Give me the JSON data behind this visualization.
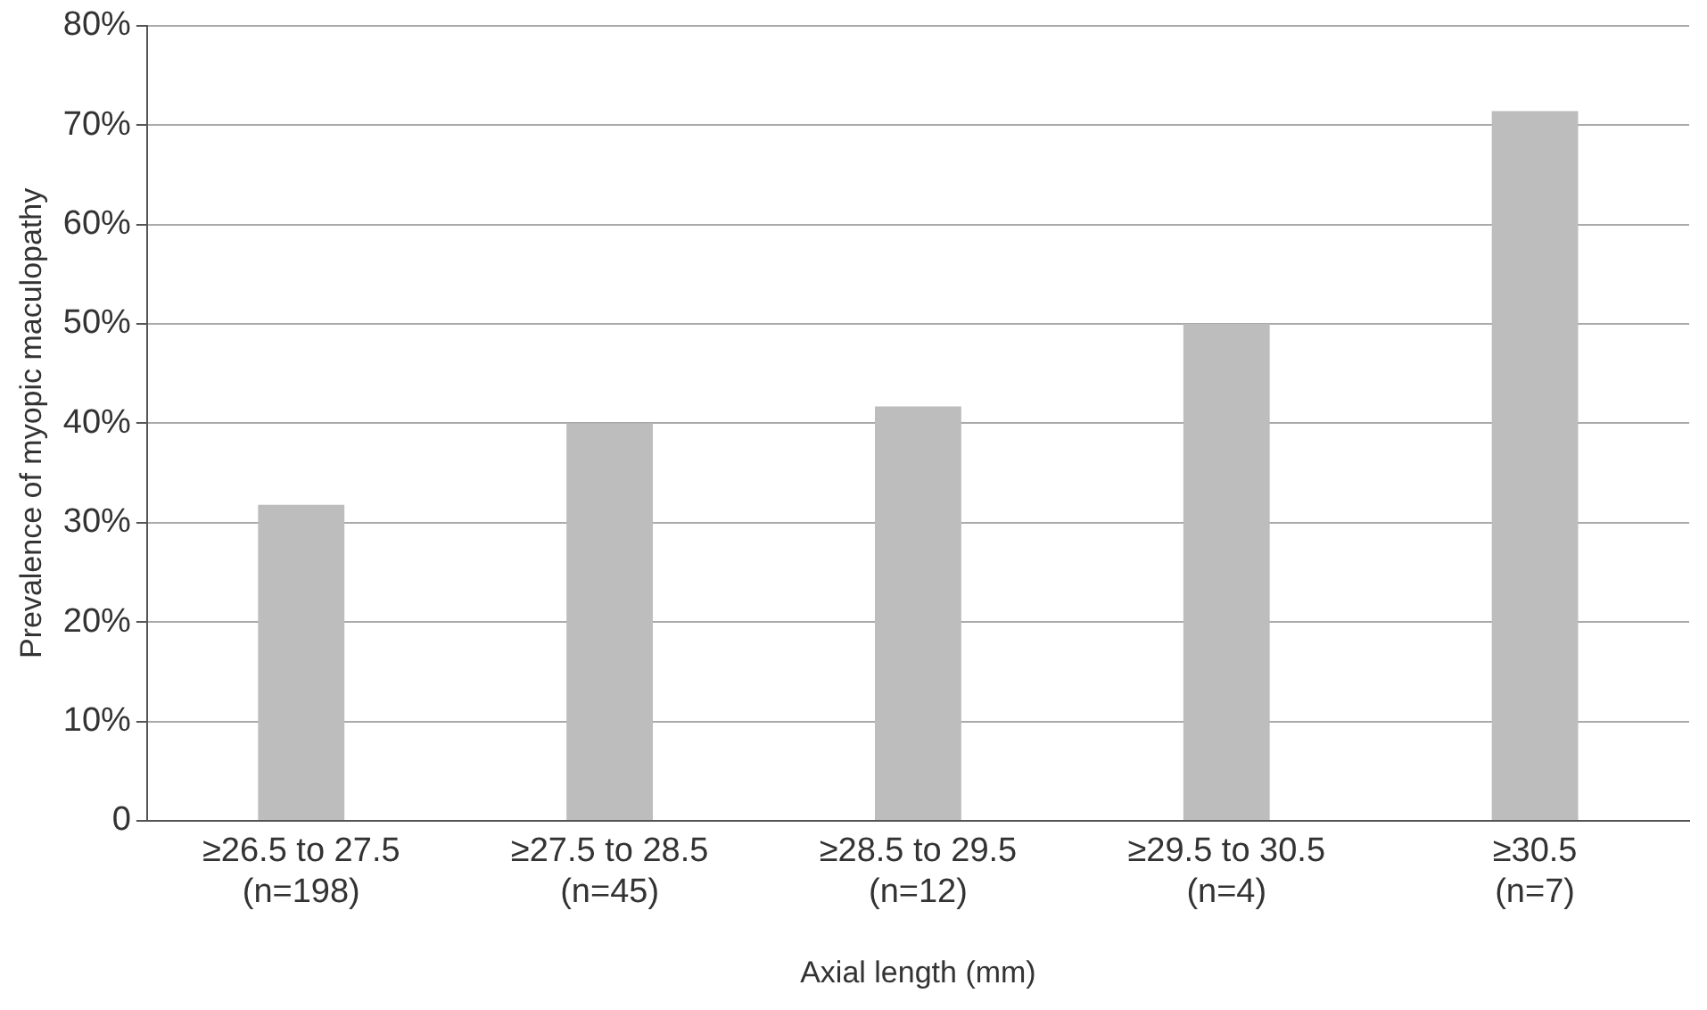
{
  "chart_data": {
    "type": "bar",
    "categories": [
      "≥26.5 to 27.5\n(n=198)",
      "≥27.5 to 28.5\n(n=45)",
      "≥28.5 to 29.5\n(n=12)",
      "≥29.5 to 30.5\n(n=4)",
      "≥30.5\n(n=7)"
    ],
    "values": [
      31.8,
      40,
      41.7,
      50,
      71.4
    ],
    "color": "#bdbdbd",
    "xlabel": "Axial length (mm)",
    "ylabel": "Prevalence of myopic maculopathy",
    "ylim": [
      0,
      80
    ],
    "yticks": [
      0,
      {
        "value": 10,
        "label": "10%"
      },
      {
        "value": 20,
        "label": "20%"
      },
      {
        "value": 30,
        "label": "30%"
      },
      {
        "value": 40,
        "label": "40%"
      },
      {
        "value": 50,
        "label": "50%"
      },
      {
        "value": 60,
        "label": "60%"
      },
      {
        "value": 70,
        "label": "70%"
      },
      {
        "value": 80,
        "label": "80%"
      }
    ],
    "grid": "y",
    "legend": false
  }
}
